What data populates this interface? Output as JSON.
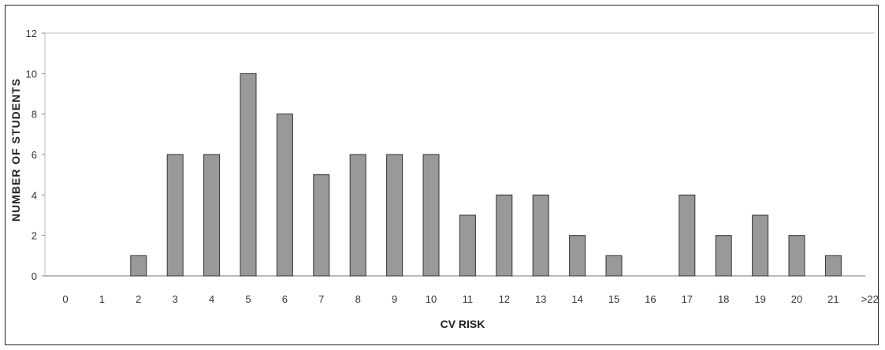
{
  "chart_data": {
    "type": "bar",
    "title": "",
    "xlabel": "CV RISK",
    "ylabel": "NUMBER OF STUDENTS",
    "categories": [
      "0",
      "1",
      "2",
      "3",
      "4",
      "5",
      "6",
      "7",
      "8",
      "9",
      "10",
      "11",
      "12",
      "13",
      "14",
      "15",
      "16",
      "17",
      "18",
      "19",
      "20",
      "21",
      ">22"
    ],
    "values": [
      0,
      0,
      1,
      6,
      6,
      10,
      8,
      5,
      6,
      6,
      6,
      3,
      4,
      4,
      2,
      1,
      0,
      4,
      2,
      3,
      2,
      1,
      0
    ],
    "ylim": [
      0,
      12
    ],
    "yticks": [
      0,
      2,
      4,
      6,
      8,
      10,
      12
    ],
    "grid": false,
    "bar_color": "#999999",
    "bar_edge_color": "#333333"
  }
}
